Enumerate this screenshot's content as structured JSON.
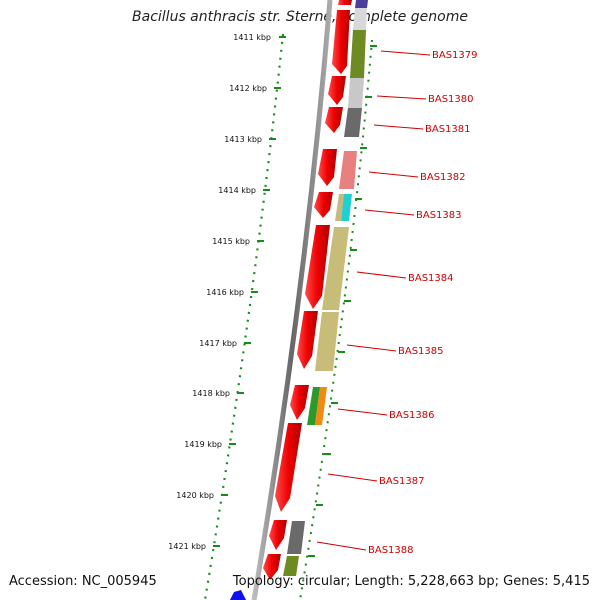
{
  "title": "Bacillus anthracis str. Sterne, complete genome",
  "footer": {
    "accession": "Accession: NC_005945",
    "topology": "Topology: circular; Length: 5,228,663 bp; Genes: 5,415"
  },
  "ruler": [
    {
      "label": "1411 kbp"
    },
    {
      "label": "1412 kbp"
    },
    {
      "label": "1413 kbp"
    },
    {
      "label": "1414 kbp"
    },
    {
      "label": "1415 kbp"
    },
    {
      "label": "1416 kbp"
    },
    {
      "label": "1417 kbp"
    },
    {
      "label": "1418 kbp"
    },
    {
      "label": "1419 kbp"
    },
    {
      "label": "1420 kbp"
    },
    {
      "label": "1421 kbp"
    }
  ],
  "genes": [
    {
      "label": "BAS1379"
    },
    {
      "label": "BAS1380"
    },
    {
      "label": "BAS1381"
    },
    {
      "label": "BAS1382"
    },
    {
      "label": "BAS1383"
    },
    {
      "label": "BAS1384"
    },
    {
      "label": "BAS1385"
    },
    {
      "label": "BAS1386"
    },
    {
      "label": "BAS1387"
    },
    {
      "label": "BAS1388"
    }
  ],
  "colors": {
    "gene_arrow": "#ee0000",
    "backbone": "#777777",
    "ruler_dots": "#1a8a1a",
    "label": "#d10000"
  }
}
